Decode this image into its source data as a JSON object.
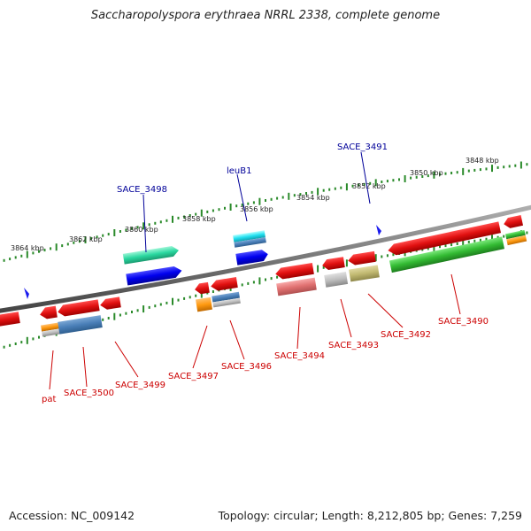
{
  "title": "Saccharopolyspora erythraea NRRL 2338, complete genome",
  "footer": {
    "accession": "Accession: NC_009142",
    "topology": "Topology: circular; Length: 8,212,805 bp; Genes: 7,259"
  },
  "colors": {
    "backbone": "#777777",
    "ruler_tick": "#2a8a2a",
    "gene_red": "#e01010",
    "label_red": "#cc0000",
    "label_blue": "#000099"
  },
  "ruler_labels": [
    "3864 kbp",
    "3862 kbp",
    "3860 kbp",
    "3858 kbp",
    "3856 kbp",
    "3854 kbp",
    "3852 kbp",
    "3850 kbp",
    "3848 kbp"
  ],
  "gene_labels": {
    "forward": [
      "SACE_3498",
      "leuB1",
      "SACE_3491"
    ],
    "reverse": [
      "pat",
      "SACE_3500",
      "SACE_3499",
      "SACE_3497",
      "SACE_3496",
      "SACE_3494",
      "SACE_3493",
      "SACE_3492",
      "SACE_3490"
    ]
  }
}
